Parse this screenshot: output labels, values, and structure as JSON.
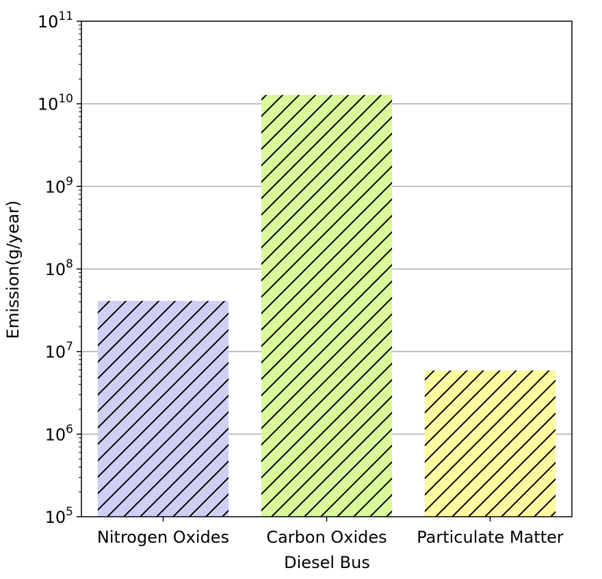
{
  "chart_data": {
    "type": "bar",
    "categories": [
      "Nitrogen Oxides",
      "Carbon Oxides",
      "Particulate Matter"
    ],
    "values": [
      41000000,
      12800000000,
      5900000
    ],
    "xlabel": "Diesel Bus",
    "ylabel": "Emission(g/year)",
    "yscale": "log",
    "ylim": [
      100000,
      100000000000
    ],
    "yticks": [
      {
        "exp": "5",
        "value": 100000
      },
      {
        "exp": "6",
        "value": 1000000
      },
      {
        "exp": "7",
        "value": 10000000
      },
      {
        "exp": "8",
        "value": 100000000
      },
      {
        "exp": "9",
        "value": 1000000000
      },
      {
        "exp": "10",
        "value": 10000000000
      },
      {
        "exp": "11",
        "value": 100000000000
      }
    ],
    "ytick_base": "10",
    "grid": "y-major",
    "colors": [
      "#cfcff5",
      "#d9f99a",
      "#fff9a0"
    ],
    "hatch": "diagonal"
  }
}
